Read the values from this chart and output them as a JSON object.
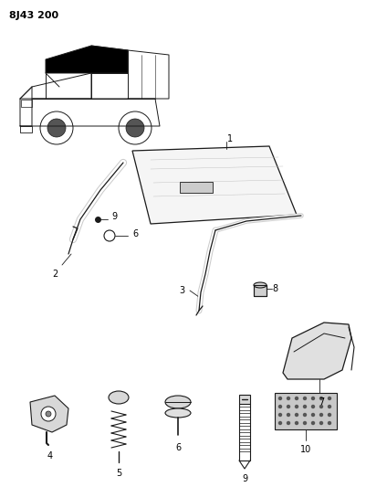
{
  "title": "8J43 200",
  "bg_color": "#ffffff",
  "line_color": "#1a1a1a",
  "fig_width": 4.02,
  "fig_height": 5.33,
  "dpi": 100
}
